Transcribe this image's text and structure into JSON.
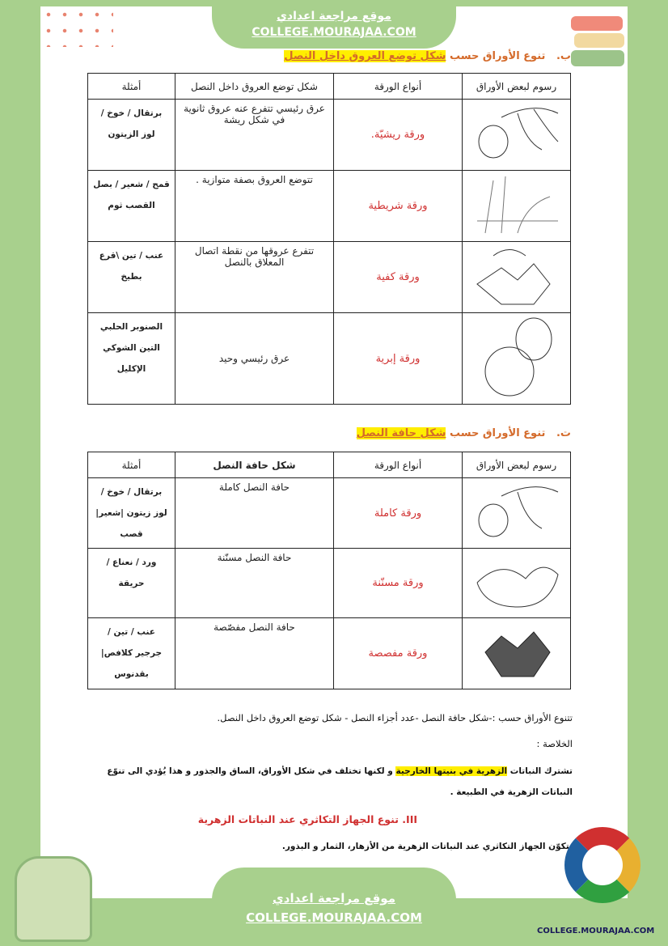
{
  "site": {
    "arabic": "موقع مراجعة اعدادي",
    "url": "COLLEGE.MOURAJAA.COM",
    "logo_url": "COLLEGE.MOURAJAA.COM"
  },
  "colors": {
    "green": "#a8d08d",
    "accent_red": "#d03030",
    "highlight": "#ffee00",
    "heading_orange": "#d46a2a"
  },
  "section_b": {
    "prefix": "ب.",
    "title": "تنوع الأوراق حسب",
    "highlight": "شكل توضع العروق داخل النصل",
    "headers": [
      "رسوم لبعض الأوراق",
      "أنواع الورقة",
      "شكل توضع العروق داخل النصل",
      "أمثلة"
    ],
    "rows": [
      {
        "type": "ورقة ريشيّة.",
        "desc": "عرق رئيسي تتفرع عنه عروق ثانوية في شكل ريشة",
        "examples": "برتقال / خوخ / لوز الزيتون",
        "image": "pinnate-leaf"
      },
      {
        "type": "ورقة شريطية",
        "desc": "تتوضع العروق بصفة متوازية .",
        "examples": "قمح / شعير / بصل القصب ثوم",
        "image": "parallel-leaf"
      },
      {
        "type": "ورقة كفية",
        "desc": "تتفرع عروقها من نقطة اتصال المعلاق بالنصل",
        "examples": "عنب / تين \\قرع بطيخ",
        "image": "palmate-leaf"
      },
      {
        "type": "ورقة إبرية",
        "desc": "عرق رئيسي وحيد",
        "examples": "الصنوبر الحلبي التين الشوكي الإكليل",
        "image": "cactus"
      }
    ]
  },
  "section_t": {
    "prefix": "ت.",
    "title": "تنوع الأوراق حسب",
    "highlight": "شكل حافة النصل",
    "headers": [
      "رسوم لبعض الأوراق",
      "أنواع الورقة",
      "شكل حافة النصل",
      "أمثلة"
    ],
    "rows": [
      {
        "type": "ورقة كاملة",
        "desc": "حافة النصل كاملة",
        "examples": "برتقال / خوخ / لوز زيتون |شعير| قصب",
        "image": "entire-leaf"
      },
      {
        "type": "ورقة مسنّنة",
        "desc": "حافة النصل مسنّنة",
        "examples": "ورد / نعناع / حريقة",
        "image": "toothed-leaf"
      },
      {
        "type": "ورقة مفصصة",
        "desc": "حافة النصل مفصّصة",
        "examples": "عنب / تين / جرجير كلافص| بقدنوس",
        "image": "lobed-leaf"
      }
    ]
  },
  "summary_line": "تتنوع الأوراق حسب :-شكل حافة النصل      -عدد أجزاء النصل  -  شكل توضع العروق داخل النصل.",
  "conclusion_label": "الخلاصة :",
  "conclusion_pre": "تشترك النباتات ",
  "conclusion_hl": "الزهرية في بنيتها الخارجية",
  "conclusion_post": " و لكنها تختلف في شكل الأوراق، الساق والجذور و هذا يُؤدي الى تنوّع النباتات الزهرية في الطبيعة .",
  "section_3": {
    "title": "III.  تنوع الجهاز التكاثري عند النباتات الزهرية",
    "text": "يتكوّن الجهاز التكاثري عند النباتات الزهرية من الأزهار، الثمار و البذور."
  }
}
